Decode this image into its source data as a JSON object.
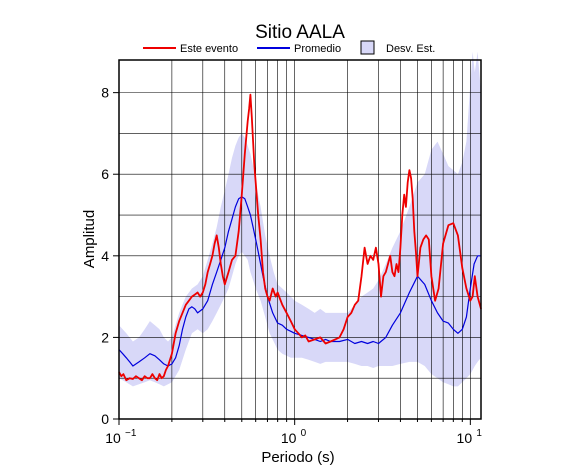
{
  "chart_data": {
    "type": "line",
    "title": "Sitio AALA",
    "xlabel": "Periodo (s)",
    "ylabel": "Amplitud",
    "xscale": "log",
    "xlim": [
      0.1,
      11.5
    ],
    "ylim": [
      0,
      8.8
    ],
    "x_ticks": [
      {
        "base": "10",
        "exp": "−1",
        "value": 0.1
      },
      {
        "base": "10",
        "exp": "0",
        "value": 1
      },
      {
        "base": "10",
        "exp": "1",
        "value": 10
      }
    ],
    "y_ticks": [
      {
        "label": "0",
        "value": 0
      },
      {
        "label": "2",
        "value": 2
      },
      {
        "label": "4",
        "value": 4
      },
      {
        "label": "6",
        "value": 6
      },
      {
        "label": "8",
        "value": 8
      }
    ],
    "grid": true,
    "legend_position": "top",
    "legend": {
      "event": "Este evento",
      "mean": "Promedio",
      "std": "Desv. Est."
    },
    "colors": {
      "event": "#ee0000",
      "mean": "#0000dd",
      "band": "#d8d8f8",
      "grid": "#000000"
    },
    "series": [
      {
        "name": "Este evento",
        "x": [
          0.1,
          0.103,
          0.106,
          0.11,
          0.115,
          0.12,
          0.125,
          0.13,
          0.135,
          0.14,
          0.145,
          0.15,
          0.155,
          0.16,
          0.165,
          0.17,
          0.175,
          0.18,
          0.185,
          0.19,
          0.2,
          0.21,
          0.22,
          0.23,
          0.24,
          0.25,
          0.26,
          0.27,
          0.28,
          0.29,
          0.3,
          0.31,
          0.32,
          0.33,
          0.34,
          0.35,
          0.36,
          0.37,
          0.38,
          0.39,
          0.4,
          0.42,
          0.44,
          0.46,
          0.48,
          0.5,
          0.52,
          0.54,
          0.55,
          0.56,
          0.57,
          0.58,
          0.59,
          0.6,
          0.62,
          0.64,
          0.66,
          0.68,
          0.7,
          0.72,
          0.75,
          0.78,
          0.8,
          0.85,
          0.9,
          0.95,
          1.0,
          1.05,
          1.1,
          1.15,
          1.2,
          1.3,
          1.4,
          1.5,
          1.6,
          1.7,
          1.8,
          1.9,
          2.0,
          2.1,
          2.2,
          2.3,
          2.4,
          2.5,
          2.6,
          2.7,
          2.8,
          2.9,
          3.0,
          3.1,
          3.2,
          3.3,
          3.4,
          3.5,
          3.6,
          3.7,
          3.8,
          3.9,
          4.0,
          4.1,
          4.2,
          4.3,
          4.4,
          4.5,
          4.6,
          4.7,
          4.8,
          4.9,
          5.0,
          5.2,
          5.4,
          5.6,
          5.8,
          6.0,
          6.3,
          6.6,
          7.0,
          7.5,
          8.0,
          8.5,
          9.0,
          9.5,
          10.0,
          10.3,
          10.6,
          11.0,
          11.5
        ],
        "values": [
          1.15,
          1.05,
          1.1,
          0.95,
          1.0,
          0.98,
          1.05,
          1.0,
          0.95,
          1.05,
          1.0,
          1.0,
          1.1,
          1.0,
          0.95,
          1.1,
          1.0,
          1.05,
          1.2,
          1.3,
          1.6,
          2.1,
          2.4,
          2.6,
          2.8,
          2.9,
          3.0,
          3.05,
          3.1,
          3.0,
          3.1,
          3.3,
          3.6,
          3.8,
          4.0,
          4.3,
          4.5,
          4.2,
          3.8,
          3.5,
          3.3,
          3.6,
          3.9,
          4.0,
          4.6,
          5.5,
          6.5,
          7.3,
          7.6,
          7.95,
          7.4,
          6.8,
          6.2,
          5.8,
          5.0,
          4.4,
          3.6,
          3.2,
          3.0,
          2.9,
          3.2,
          3.0,
          3.1,
          2.8,
          2.6,
          2.4,
          2.2,
          2.1,
          2.0,
          2.05,
          1.9,
          1.95,
          2.0,
          1.85,
          1.9,
          1.95,
          2.0,
          2.2,
          2.5,
          2.6,
          2.8,
          2.9,
          3.5,
          4.2,
          3.8,
          4.0,
          3.9,
          4.2,
          3.8,
          3.0,
          3.5,
          3.6,
          3.8,
          4.0,
          3.6,
          3.5,
          3.8,
          3.6,
          4.2,
          5.0,
          5.5,
          5.2,
          5.8,
          6.1,
          5.9,
          5.4,
          4.6,
          4.1,
          3.5,
          4.2,
          4.4,
          4.5,
          4.4,
          3.5,
          2.9,
          3.2,
          4.3,
          4.75,
          4.8,
          4.5,
          3.7,
          3.2,
          2.9,
          3.0,
          3.5,
          3.0,
          2.7
        ]
      },
      {
        "name": "Promedio",
        "x": [
          0.1,
          0.105,
          0.11,
          0.115,
          0.12,
          0.13,
          0.14,
          0.15,
          0.16,
          0.17,
          0.18,
          0.19,
          0.2,
          0.21,
          0.22,
          0.23,
          0.24,
          0.25,
          0.26,
          0.27,
          0.28,
          0.3,
          0.32,
          0.34,
          0.36,
          0.38,
          0.4,
          0.42,
          0.44,
          0.46,
          0.48,
          0.5,
          0.52,
          0.54,
          0.56,
          0.58,
          0.6,
          0.62,
          0.64,
          0.66,
          0.7,
          0.75,
          0.8,
          0.85,
          0.9,
          0.95,
          1.0,
          1.1,
          1.2,
          1.3,
          1.4,
          1.5,
          1.6,
          1.8,
          2.0,
          2.2,
          2.4,
          2.6,
          2.8,
          3.0,
          3.3,
          3.6,
          4.0,
          4.5,
          5.0,
          5.5,
          6.0,
          6.5,
          7.0,
          7.5,
          8.0,
          8.5,
          9.0,
          9.5,
          10.0,
          10.5,
          11.0,
          11.5
        ],
        "values": [
          1.7,
          1.6,
          1.5,
          1.4,
          1.3,
          1.4,
          1.5,
          1.6,
          1.55,
          1.45,
          1.35,
          1.3,
          1.35,
          1.5,
          1.8,
          2.2,
          2.5,
          2.7,
          2.75,
          2.7,
          2.6,
          2.7,
          2.9,
          3.3,
          3.6,
          3.9,
          4.2,
          4.6,
          4.9,
          5.2,
          5.4,
          5.45,
          5.4,
          5.2,
          5.0,
          4.7,
          4.4,
          4.1,
          3.8,
          3.5,
          3.0,
          2.6,
          2.35,
          2.3,
          2.2,
          2.15,
          2.1,
          2.05,
          2.0,
          1.95,
          1.9,
          1.95,
          1.9,
          1.9,
          1.95,
          1.85,
          1.9,
          1.85,
          1.9,
          1.85,
          2.0,
          2.3,
          2.6,
          3.1,
          3.5,
          3.3,
          2.9,
          2.6,
          2.4,
          2.35,
          2.2,
          2.1,
          2.2,
          2.5,
          3.2,
          3.8,
          4.0,
          4.0
        ]
      },
      {
        "name": "Desv. Est.",
        "x": [
          0.1,
          0.11,
          0.12,
          0.13,
          0.14,
          0.15,
          0.16,
          0.17,
          0.18,
          0.19,
          0.2,
          0.22,
          0.24,
          0.26,
          0.28,
          0.3,
          0.32,
          0.34,
          0.36,
          0.38,
          0.4,
          0.42,
          0.44,
          0.46,
          0.48,
          0.5,
          0.52,
          0.54,
          0.56,
          0.58,
          0.6,
          0.64,
          0.68,
          0.72,
          0.76,
          0.8,
          0.85,
          0.9,
          0.95,
          1.0,
          1.1,
          1.2,
          1.3,
          1.4,
          1.5,
          1.7,
          2.0,
          2.2,
          2.4,
          2.6,
          2.8,
          3.0,
          3.3,
          3.6,
          4.0,
          4.5,
          5.0,
          5.5,
          6.0,
          6.5,
          7.0,
          7.5,
          8.0,
          8.5,
          9.0,
          9.5,
          10.0,
          10.3,
          10.6,
          11.0,
          11.5
        ],
        "upper": [
          2.3,
          2.1,
          1.9,
          2.0,
          2.2,
          2.4,
          2.3,
          2.2,
          2.0,
          1.9,
          2.0,
          2.6,
          3.0,
          3.2,
          3.3,
          3.5,
          3.9,
          4.3,
          4.7,
          5.2,
          5.6,
          6.0,
          6.4,
          6.7,
          6.9,
          7.0,
          6.9,
          6.7,
          6.5,
          6.2,
          5.8,
          5.2,
          4.5,
          4.0,
          3.6,
          3.3,
          3.2,
          3.1,
          3.0,
          2.9,
          2.8,
          2.7,
          2.6,
          2.7,
          2.6,
          2.6,
          2.6,
          2.8,
          3.0,
          3.1,
          3.2,
          3.4,
          3.8,
          4.2,
          4.6,
          5.2,
          5.8,
          6.0,
          6.6,
          6.8,
          6.5,
          6.2,
          6.1,
          6.0,
          6.3,
          6.8,
          8.2,
          9.0,
          8.5,
          9.0,
          8.0
        ],
        "lower": [
          1.0,
          0.9,
          0.8,
          0.85,
          0.9,
          0.95,
          0.9,
          0.85,
          0.8,
          0.85,
          0.9,
          1.2,
          1.7,
          2.1,
          2.2,
          2.1,
          2.2,
          2.4,
          2.6,
          2.8,
          3.0,
          3.2,
          3.5,
          3.8,
          4.0,
          4.1,
          4.0,
          3.9,
          3.6,
          3.4,
          3.2,
          2.9,
          2.5,
          2.1,
          1.9,
          1.7,
          1.6,
          1.55,
          1.5,
          1.5,
          1.5,
          1.45,
          1.4,
          1.35,
          1.4,
          1.4,
          1.4,
          1.35,
          1.3,
          1.3,
          1.25,
          1.3,
          1.3,
          1.3,
          1.35,
          1.4,
          1.4,
          1.3,
          1.1,
          1.0,
          0.9,
          0.85,
          0.8,
          0.8,
          0.9,
          1.0,
          1.1,
          1.2,
          1.3,
          1.4,
          1.5
        ]
      }
    ]
  }
}
